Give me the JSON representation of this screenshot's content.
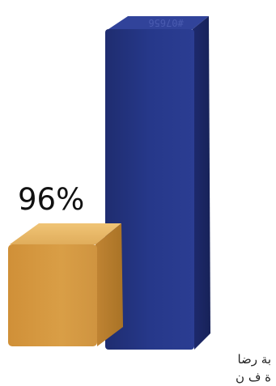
{
  "chart_data": {
    "type": "bar",
    "categories": [
      "",
      ""
    ],
    "values": [
      96,
      100
    ],
    "data_labels": [
      "96%",
      ""
    ],
    "bar_text": [
      "",
      "#07656"
    ],
    "colors": {
      "bar1_front": "#d59a41",
      "bar1_top": "#e4b463",
      "bar1_side": "#b67c2c",
      "bar2_front": "#243582",
      "bar2_top": "#2f4197",
      "bar2_side": "#1a2766"
    },
    "grid": false,
    "legend": "none"
  },
  "caption": {
    "line1": "بة رضا",
    "line2": "ة ف ن"
  }
}
